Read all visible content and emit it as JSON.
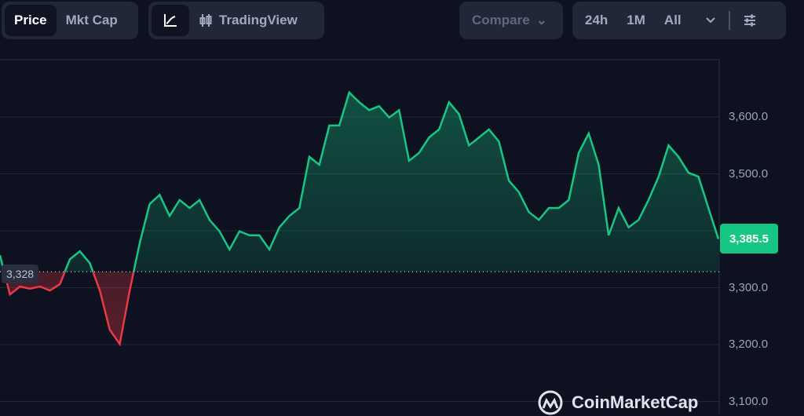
{
  "toolbar": {
    "price_label": "Price",
    "mktcap_label": "Mkt Cap",
    "line_icon": "line-chart-icon",
    "tradingview_icon": "candlestick-icon",
    "tradingview_label": "TradingView",
    "compare_label": "Compare",
    "range_24h": "24h",
    "range_1m": "1M",
    "range_all": "All",
    "settings_icon": "sliders-icon"
  },
  "brand": "CoinMarketCap",
  "colors": {
    "up": "#16c784",
    "down": "#ea3943",
    "background": "#0d1120"
  },
  "chart_data": {
    "type": "area",
    "ylim": [
      3100,
      3700
    ],
    "y_ticks": [
      "3,600.0",
      "3,500.0",
      "3,300.0",
      "3,200.0",
      "3,100.0"
    ],
    "y_tick_values": [
      3600,
      3500,
      3300,
      3200,
      3100
    ],
    "baseline": 3328,
    "baseline_label": "3,328",
    "current_value": 3385.5,
    "current_label": "3,385.5",
    "grid": true,
    "values": [
      3357,
      3288,
      3302,
      3298,
      3302,
      3295,
      3306,
      3350,
      3364,
      3343,
      3295,
      3226,
      3201,
      3295,
      3378,
      3447,
      3463,
      3426,
      3454,
      3440,
      3454,
      3419,
      3399,
      3367,
      3399,
      3392,
      3392,
      3367,
      3406,
      3426,
      3440,
      3530,
      3516,
      3585,
      3585,
      3643,
      3626,
      3612,
      3619,
      3599,
      3612,
      3523,
      3537,
      3564,
      3578,
      3626,
      3605,
      3550,
      3564,
      3578,
      3557,
      3488,
      3468,
      3433,
      3419,
      3440,
      3440,
      3454,
      3537,
      3571,
      3516,
      3392,
      3440,
      3406,
      3419,
      3454,
      3495,
      3550,
      3530,
      3502,
      3495,
      3440,
      3385.5
    ]
  }
}
